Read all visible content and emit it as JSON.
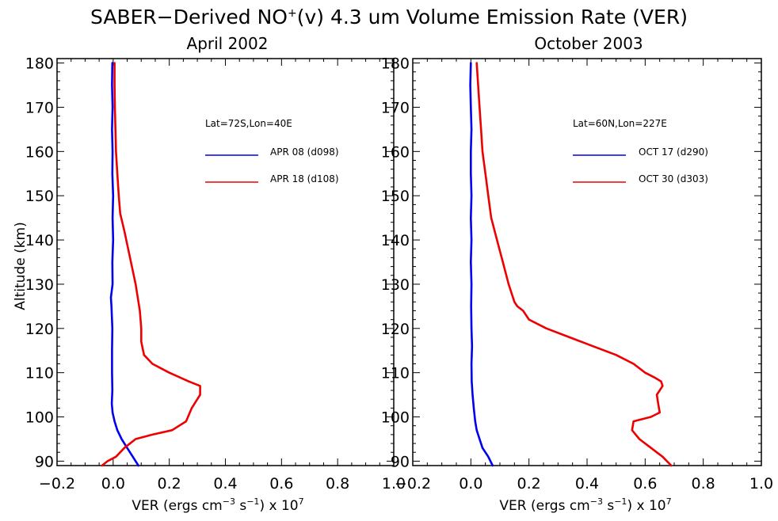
{
  "figure_title": {
    "pre": "SABER−Derived NO",
    "sup": "+",
    "post": "(v) 4.3 um Volume Emission Rate (VER)"
  },
  "chart_data": [
    {
      "type": "line",
      "title": "April 2002",
      "ylabel": "Altitude (km)",
      "xlabel": {
        "pre": "VER (ergs cm",
        "sup1": "−3",
        "mid": " s",
        "sup2": "−1",
        "post": ") x 10",
        "sup3": "7"
      },
      "xlim": [
        -0.2,
        1.0
      ],
      "ylim": [
        89,
        181
      ],
      "xticks": [
        "−0.2",
        "0.0",
        "0.2",
        "0.4",
        "0.6",
        "0.8",
        "1.0"
      ],
      "yticks": [
        "90",
        "100",
        "110",
        "120",
        "130",
        "140",
        "150",
        "160",
        "170",
        "180"
      ],
      "annotation": "Lat=72S,Lon=40E",
      "series": [
        {
          "name": "APR 08 (d098)",
          "color": "#0000ee",
          "points": [
            [
              0.09,
              89
            ],
            [
              0.07,
              91
            ],
            [
              0.05,
              93
            ],
            [
              0.03,
              95
            ],
            [
              0.015,
              97
            ],
            [
              0.005,
              99
            ],
            [
              -0.002,
              101
            ],
            [
              -0.005,
              103
            ],
            [
              -0.003,
              106
            ],
            [
              -0.004,
              110
            ],
            [
              -0.004,
              115
            ],
            [
              -0.003,
              120
            ],
            [
              -0.006,
              125
            ],
            [
              -0.008,
              127
            ],
            [
              -0.002,
              130
            ],
            [
              -0.003,
              135
            ],
            [
              0.0,
              140
            ],
            [
              -0.002,
              145
            ],
            [
              0.0,
              150
            ],
            [
              -0.003,
              155
            ],
            [
              -0.002,
              160
            ],
            [
              -0.004,
              165
            ],
            [
              -0.002,
              170
            ],
            [
              -0.004,
              175
            ],
            [
              -0.003,
              180
            ]
          ]
        },
        {
          "name": "APR 18 (d108)",
          "color": "#ee0000",
          "points": [
            [
              -0.04,
              89
            ],
            [
              -0.02,
              90
            ],
            [
              0.01,
              91
            ],
            [
              0.04,
              93
            ],
            [
              0.08,
              95
            ],
            [
              0.14,
              96
            ],
            [
              0.21,
              97
            ],
            [
              0.26,
              99
            ],
            [
              0.28,
              102
            ],
            [
              0.3,
              104
            ],
            [
              0.31,
              105
            ],
            [
              0.31,
              107
            ],
            [
              0.27,
              108
            ],
            [
              0.2,
              110
            ],
            [
              0.14,
              112
            ],
            [
              0.11,
              114
            ],
            [
              0.1,
              117
            ],
            [
              0.1,
              120
            ],
            [
              0.095,
              124
            ],
            [
              0.08,
              130
            ],
            [
              0.06,
              136
            ],
            [
              0.04,
              142
            ],
            [
              0.025,
              146
            ],
            [
              0.02,
              150
            ],
            [
              0.015,
              155
            ],
            [
              0.01,
              160
            ],
            [
              0.008,
              165
            ],
            [
              0.006,
              170
            ],
            [
              0.005,
              175
            ],
            [
              0.005,
              180
            ]
          ]
        }
      ]
    },
    {
      "type": "line",
      "title": "October 2003",
      "ylabel": "",
      "xlabel": {
        "pre": "VER (ergs cm",
        "sup1": "−3",
        "mid": " s",
        "sup2": "−1",
        "post": ") x 10",
        "sup3": "7"
      },
      "xlim": [
        -0.2,
        1.0
      ],
      "ylim": [
        89,
        181
      ],
      "xticks": [
        "−0.2",
        "0.0",
        "0.2",
        "0.4",
        "0.6",
        "0.8",
        "1.0"
      ],
      "yticks": [
        "90",
        "100",
        "110",
        "120",
        "130",
        "140",
        "150",
        "160",
        "170",
        "180"
      ],
      "annotation": "Lat=60N,Lon=227E",
      "series": [
        {
          "name": "OCT 17 (d290)",
          "color": "#0000ee",
          "points": [
            [
              0.075,
              89
            ],
            [
              0.06,
              91
            ],
            [
              0.04,
              93
            ],
            [
              0.03,
              95
            ],
            [
              0.02,
              97
            ],
            [
              0.015,
              99
            ],
            [
              0.01,
              102
            ],
            [
              0.006,
              105
            ],
            [
              0.003,
              108
            ],
            [
              0.002,
              112
            ],
            [
              0.004,
              116
            ],
            [
              0.002,
              120
            ],
            [
              0.001,
              125
            ],
            [
              0.002,
              130
            ],
            [
              0.0,
              135
            ],
            [
              0.002,
              140
            ],
            [
              0.0,
              145
            ],
            [
              0.002,
              150
            ],
            [
              0.0,
              155
            ],
            [
              0.0,
              160
            ],
            [
              0.002,
              165
            ],
            [
              0.0,
              170
            ],
            [
              -0.002,
              175
            ],
            [
              0.0,
              180
            ]
          ]
        },
        {
          "name": "OCT 30 (d303)",
          "color": "#ee0000",
          "points": [
            [
              0.69,
              89
            ],
            [
              0.66,
              91
            ],
            [
              0.62,
              93
            ],
            [
              0.58,
              95
            ],
            [
              0.555,
              97
            ],
            [
              0.56,
              99
            ],
            [
              0.62,
              100
            ],
            [
              0.65,
              101
            ],
            [
              0.645,
              103
            ],
            [
              0.64,
              105
            ],
            [
              0.65,
              106
            ],
            [
              0.66,
              107
            ],
            [
              0.655,
              108
            ],
            [
              0.63,
              109
            ],
            [
              0.6,
              110
            ],
            [
              0.56,
              112
            ],
            [
              0.5,
              114
            ],
            [
              0.42,
              116
            ],
            [
              0.34,
              118
            ],
            [
              0.26,
              120
            ],
            [
              0.2,
              122
            ],
            [
              0.18,
              124
            ],
            [
              0.16,
              125
            ],
            [
              0.15,
              126
            ],
            [
              0.13,
              130
            ],
            [
              0.11,
              135
            ],
            [
              0.09,
              140
            ],
            [
              0.07,
              145
            ],
            [
              0.06,
              150
            ],
            [
              0.05,
              155
            ],
            [
              0.04,
              160
            ],
            [
              0.035,
              165
            ],
            [
              0.03,
              170
            ],
            [
              0.025,
              175
            ],
            [
              0.02,
              180
            ]
          ]
        }
      ]
    }
  ]
}
